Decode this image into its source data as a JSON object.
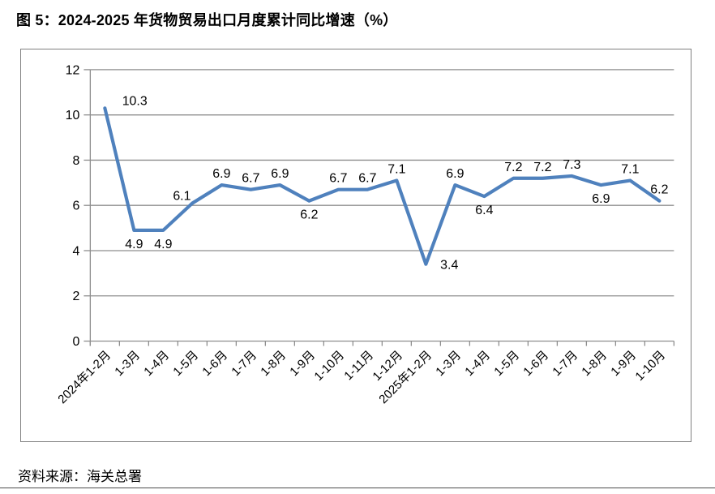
{
  "page": {
    "title": "图 5：2024-2025 年货物贸易出口月度累计同比增速（%）",
    "source": "资料来源：海关总署"
  },
  "chart_data": {
    "type": "line",
    "title": "图 5：2024-2025 年货物贸易出口月度累计同比增速（%）",
    "categories": [
      "2024年1-2月",
      "1-3月",
      "1-4月",
      "1-5月",
      "1-6月",
      "1-7月",
      "1-8月",
      "1-9月",
      "1-10月",
      "1-11月",
      "1-12月",
      "2025年1-2月",
      "1-3月",
      "1-4月",
      "1-5月",
      "1-6月",
      "1-7月",
      "1-8月",
      "1-9月",
      "1-10月"
    ],
    "values": [
      10.3,
      4.9,
      4.9,
      6.1,
      6.9,
      6.7,
      6.9,
      6.2,
      6.7,
      6.7,
      7.1,
      3.4,
      6.9,
      6.4,
      7.2,
      7.2,
      7.3,
      6.9,
      7.1,
      6.2
    ],
    "data_labels": [
      "10.3",
      "4.9",
      "4.9",
      "6.1",
      "6.9",
      "6.7",
      "6.9",
      "6.2",
      "6.7",
      "6.7",
      "7.1",
      "3.4",
      "6.9",
      "6.4",
      "7.2",
      "7.2",
      "7.3",
      "6.9",
      "7.1",
      "6.2"
    ],
    "label_pos": [
      "above-right",
      "below",
      "below",
      "above-left",
      "above",
      "above",
      "above",
      "below",
      "above",
      "above",
      "above",
      "right",
      "above",
      "below",
      "above",
      "above",
      "above",
      "below",
      "above",
      "above"
    ],
    "xlabel": "",
    "ylabel": "",
    "ylim": [
      0,
      12
    ],
    "yticks": [
      0,
      2,
      4,
      6,
      8,
      10,
      12
    ],
    "grid": true,
    "legend": "none",
    "x_label_rotation_deg": 45,
    "line_color": "#4F81BD",
    "grid_color": "#8E8E8E",
    "frame_border_color": "#808080",
    "label_color": "#000000"
  }
}
